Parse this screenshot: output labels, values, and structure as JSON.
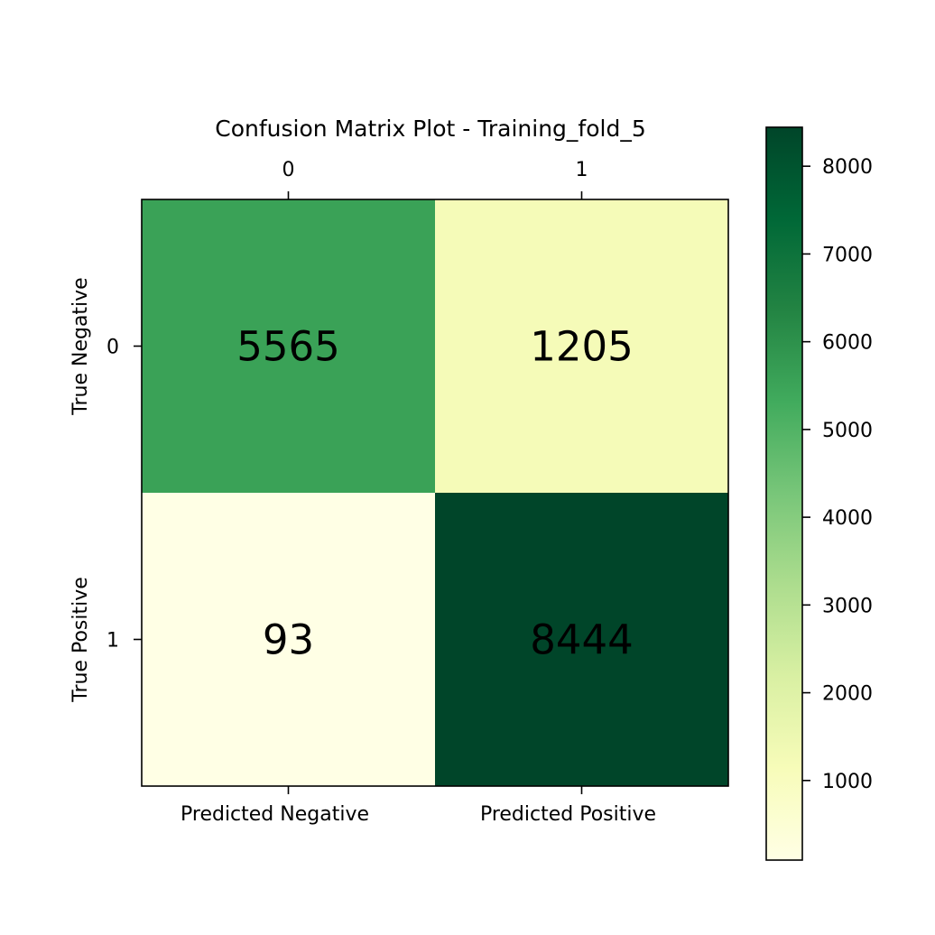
{
  "chart_data": {
    "type": "heatmap",
    "title": "Confusion Matrix Plot - Training_fold_5",
    "top_tick_labels": [
      "0",
      "1"
    ],
    "left_tick_labels": [
      "0",
      "1"
    ],
    "x_category_labels": [
      "Predicted Negative",
      "Predicted Positive"
    ],
    "y_category_labels": [
      "True Negative",
      "True Positive"
    ],
    "values": [
      [
        5565,
        1205
      ],
      [
        93,
        8444
      ]
    ],
    "colormap": "YlGn",
    "colorbar": {
      "range": [
        93,
        8444
      ],
      "ticks": [
        "1000",
        "2000",
        "3000",
        "4000",
        "5000",
        "6000",
        "7000",
        "8000"
      ]
    }
  }
}
